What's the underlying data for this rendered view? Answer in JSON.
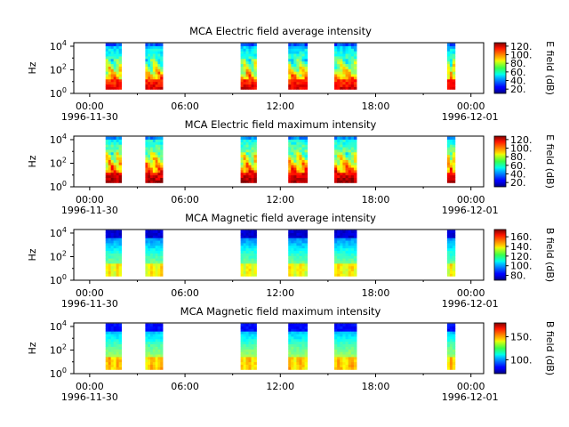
{
  "chart_data": [
    {
      "type": "heatmap",
      "title": "MCA  Electric field average intensity",
      "ylabel": "Hz",
      "yticks": [
        "10^0",
        "10^2",
        "10^4"
      ],
      "xticks": [
        "00:00",
        "06:00",
        "12:00",
        "18:00",
        "00:00"
      ],
      "xdate_left": "1996-11-30",
      "xdate_right": "1996-12-01",
      "colorbar_label": "E field (dB)",
      "colorbar_ticks": [
        "120.",
        "100.",
        "80.",
        "60.",
        "40.",
        "20."
      ],
      "colorbar_range": [
        10,
        128
      ],
      "freq_range_hz": [
        1,
        20000
      ],
      "data_coverage_hours": [
        [
          1.0,
          2.0
        ],
        [
          3.5,
          4.6
        ],
        [
          9.5,
          10.5
        ],
        [
          12.5,
          13.7
        ],
        [
          15.4,
          16.8
        ],
        [
          22.5,
          23.0
        ]
      ],
      "field": "E"
    },
    {
      "type": "heatmap",
      "title": "MCA  Electric field maximum intensity",
      "ylabel": "Hz",
      "yticks": [
        "10^0",
        "10^2",
        "10^4"
      ],
      "xticks": [
        "00:00",
        "06:00",
        "12:00",
        "18:00",
        "00:00"
      ],
      "xdate_left": "1996-11-30",
      "xdate_right": "1996-12-01",
      "colorbar_label": "E field (dB)",
      "colorbar_ticks": [
        "120.",
        "100.",
        "80.",
        "60.",
        "40.",
        "20."
      ],
      "colorbar_range": [
        10,
        128
      ],
      "freq_range_hz": [
        1,
        20000
      ],
      "data_coverage_hours": [
        [
          1.0,
          2.0
        ],
        [
          3.5,
          4.6
        ],
        [
          9.5,
          10.5
        ],
        [
          12.5,
          13.7
        ],
        [
          15.4,
          16.8
        ],
        [
          22.5,
          23.0
        ]
      ],
      "field": "E"
    },
    {
      "type": "heatmap",
      "title": "MCA  Magnetic field average intensity",
      "ylabel": "Hz",
      "yticks": [
        "10^0",
        "10^2",
        "10^4"
      ],
      "xticks": [
        "00:00",
        "06:00",
        "12:00",
        "18:00",
        "00:00"
      ],
      "xdate_left": "1996-11-30",
      "xdate_right": "1996-12-01",
      "colorbar_label": "B field (dB)",
      "colorbar_ticks": [
        "160.",
        "140.",
        "120.",
        "100.",
        "80."
      ],
      "colorbar_range": [
        70,
        175
      ],
      "freq_range_hz": [
        1,
        20000
      ],
      "data_coverage_hours": [
        [
          1.0,
          2.0
        ],
        [
          3.5,
          4.6
        ],
        [
          9.5,
          10.5
        ],
        [
          12.5,
          13.7
        ],
        [
          15.4,
          16.8
        ],
        [
          22.5,
          23.0
        ]
      ],
      "field": "B"
    },
    {
      "type": "heatmap",
      "title": "MCA  Magnetic field maximum intensity",
      "ylabel": "Hz",
      "yticks": [
        "10^0",
        "10^2",
        "10^4"
      ],
      "xticks": [
        "00:00",
        "06:00",
        "12:00",
        "18:00",
        "00:00"
      ],
      "xdate_left": "1996-11-30",
      "xdate_right": "1996-12-01",
      "colorbar_label": "B field (dB)",
      "colorbar_ticks": [
        "150.",
        "100."
      ],
      "colorbar_range": [
        70,
        180
      ],
      "freq_range_hz": [
        1,
        20000
      ],
      "data_coverage_hours": [
        [
          1.0,
          2.0
        ],
        [
          3.5,
          4.6
        ],
        [
          9.5,
          10.5
        ],
        [
          12.5,
          13.7
        ],
        [
          15.4,
          16.8
        ],
        [
          22.5,
          23.0
        ]
      ],
      "field": "B"
    }
  ]
}
